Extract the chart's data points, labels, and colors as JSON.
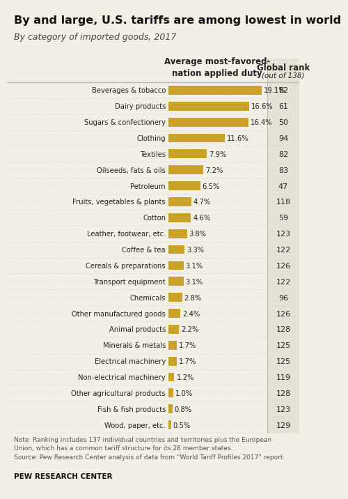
{
  "title": "By and large, U.S. tariffs are among lowest in world",
  "subtitle": "By category of imported goods, 2017",
  "col_header_left": "Average most-favored-\nnation applied duty",
  "col_header_right": "Global rank",
  "col_header_right_sub": "(out of 138)",
  "categories": [
    "Beverages & tobacco",
    "Dairy products",
    "Sugars & confectionery",
    "Clothing",
    "Textiles",
    "Oilseeds, fats & oils",
    "Petroleum",
    "Fruits, vegetables & plants",
    "Cotton",
    "Leather, footwear, etc.",
    "Coffee & tea",
    "Cereals & preparations",
    "Transport equipment",
    "Chemicals",
    "Other manufactured goods",
    "Animal products",
    "Minerals & metals",
    "Electrical machinery",
    "Non-electrical machinery",
    "Other agricultural products",
    "Fish & fish products",
    "Wood, paper, etc."
  ],
  "values": [
    19.1,
    16.6,
    16.4,
    11.6,
    7.9,
    7.2,
    6.5,
    4.7,
    4.6,
    3.8,
    3.3,
    3.1,
    3.1,
    2.8,
    2.4,
    2.2,
    1.7,
    1.7,
    1.2,
    1.0,
    0.8,
    0.5
  ],
  "ranks": [
    82,
    61,
    50,
    94,
    82,
    83,
    47,
    118,
    59,
    123,
    122,
    126,
    122,
    96,
    126,
    128,
    125,
    125,
    119,
    128,
    123,
    129
  ],
  "bar_color": "#C9A227",
  "bg_color": "#F2EFE6",
  "right_col_bg": "#E5E1D5",
  "sep_color": "#BBBBBB",
  "text_color": "#222222",
  "note_color": "#555555",
  "note": "Note: Ranking includes 137 individual countries and territories plus the European\nUnion, which has a common tariff structure for its 28 member states.\nSource: Pew Research Center analysis of data from “World Tariff Profiles 2017” report.",
  "footer": "PEW RESEARCH CENTER",
  "title_fontsize": 11.5,
  "subtitle_fontsize": 9.0,
  "label_fontsize": 7.2,
  "value_fontsize": 7.2,
  "rank_fontsize": 8.0,
  "header_fontsize": 8.5,
  "note_fontsize": 6.5,
  "footer_fontsize": 7.5,
  "max_val": 20.0
}
